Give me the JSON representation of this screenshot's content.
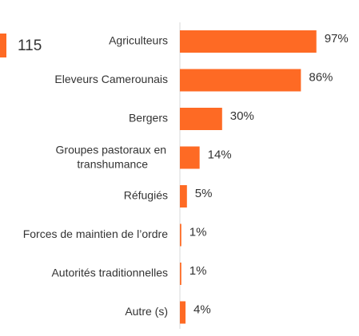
{
  "badge": "115",
  "chart_data": {
    "type": "bar",
    "orientation": "horizontal",
    "color": "#fe6a24",
    "categories": [
      "Agriculteurs",
      "Eleveurs Camerounais",
      "Bergers",
      "Groupes pastoraux en transhumance",
      "Réfugiés",
      "Forces de maintien de l’ordre",
      "Autorités traditionnelles",
      "Autre (s)"
    ],
    "values": [
      97,
      86,
      30,
      14,
      5,
      1,
      1,
      4
    ],
    "value_labels": [
      "97%",
      "86%",
      "30%",
      "14%",
      "5%",
      "1%",
      "1%",
      "4%"
    ],
    "xlim": [
      0,
      100
    ]
  }
}
